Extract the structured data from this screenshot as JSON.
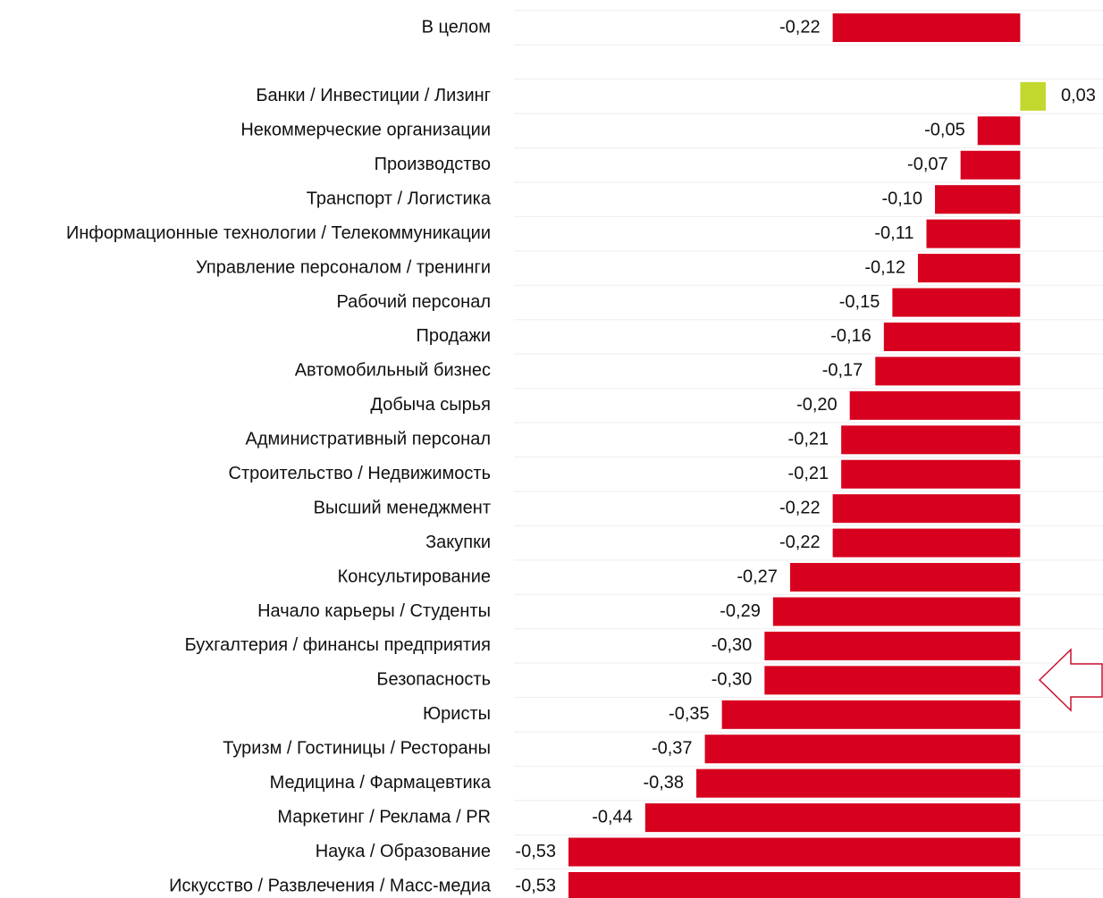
{
  "chart_data": {
    "type": "bar",
    "orientation": "horizontal",
    "categories": [
      "В целом",
      null,
      "Банки / Инвестиции / Лизинг",
      "Некоммерческие организации",
      "Производство",
      "Транспорт / Логистика",
      "Информационные технологии / Телекоммуникации",
      "Управление персоналом / тренинги",
      "Рабочий персонал",
      "Продажи",
      "Автомобильный бизнес",
      "Добыча сырья",
      "Административный персонал",
      "Строительство / Недвижимость",
      "Высший менеджмент",
      "Закупки",
      "Консультирование",
      "Начало карьеры / Студенты",
      "Бухгалтерия / финансы предприятия",
      "Безопасность",
      "Юристы",
      "Туризм / Гостиницы / Рестораны",
      "Медицина / Фармацевтика",
      "Маркетинг / Реклама / PR",
      "Наука / Образование",
      "Искусство / Развлечения / Масс-медиа"
    ],
    "values": [
      -0.22,
      null,
      0.03,
      -0.05,
      -0.07,
      -0.1,
      -0.11,
      -0.12,
      -0.15,
      -0.16,
      -0.17,
      -0.2,
      -0.21,
      -0.21,
      -0.22,
      -0.22,
      -0.27,
      -0.29,
      -0.3,
      -0.3,
      -0.35,
      -0.37,
      -0.38,
      -0.44,
      -0.53,
      -0.53
    ],
    "value_labels": [
      "-0,22",
      null,
      "0,03",
      "-0,05",
      "-0,07",
      "-0,10",
      "-0,11",
      "-0,12",
      "-0,15",
      "-0,16",
      "-0,17",
      "-0,20",
      "-0,21",
      "-0,21",
      "-0,22",
      "-0,22",
      "-0,27",
      "-0,29",
      "-0,30",
      "-0,30",
      "-0,35",
      "-0,37",
      "-0,38",
      "-0,44",
      "-0,53",
      "-0,53"
    ],
    "color": "#d7001e",
    "positive_color": "#c3d82f"
  }
}
